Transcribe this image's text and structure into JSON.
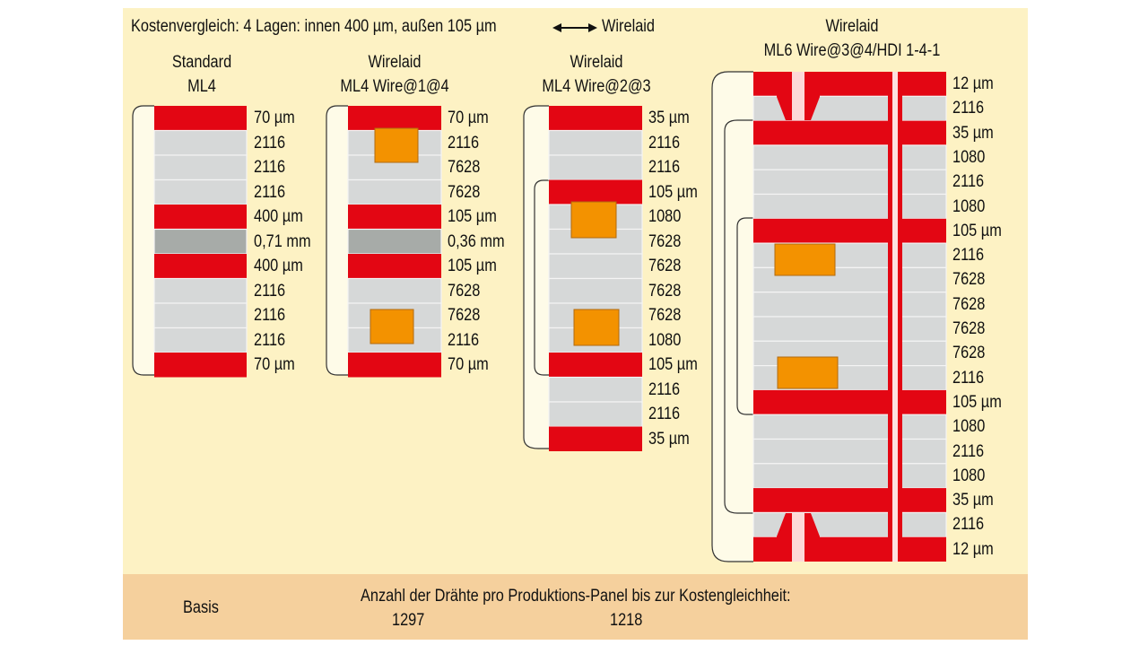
{
  "title": "Kostenvergleich: 4 Lagen: innen 400 µm, außen 105 µm",
  "arrow_target": "Wirelaid",
  "colors": {
    "copper": "#e30613",
    "prepreg": "#d6d8d8",
    "core": "#a7aba8",
    "wire": "#f39200",
    "background": "#fdf2c4",
    "footer": "#f5d09d"
  },
  "stacks": [
    {
      "title": [
        "Standard",
        "ML4"
      ],
      "layers": [
        {
          "label": "70 µm",
          "type": "copper"
        },
        {
          "label": "2116",
          "type": "prepreg"
        },
        {
          "label": "2116",
          "type": "prepreg"
        },
        {
          "label": "2116",
          "type": "prepreg"
        },
        {
          "label": "400 µm",
          "type": "copper"
        },
        {
          "label": "0,71 mm",
          "type": "core"
        },
        {
          "label": "400 µm",
          "type": "copper"
        },
        {
          "label": "2116",
          "type": "prepreg"
        },
        {
          "label": "2116",
          "type": "prepreg"
        },
        {
          "label": "2116",
          "type": "prepreg"
        },
        {
          "label": "70 µm",
          "type": "copper"
        }
      ]
    },
    {
      "title": [
        "Wirelaid",
        "ML4 Wire@1@4"
      ],
      "layers": [
        {
          "label": "70 µm",
          "type": "copper"
        },
        {
          "label": "2116",
          "type": "prepreg"
        },
        {
          "label": "7628",
          "type": "prepreg"
        },
        {
          "label": "7628",
          "type": "prepreg"
        },
        {
          "label": "105 µm",
          "type": "copper"
        },
        {
          "label": "0,36 mm",
          "type": "core"
        },
        {
          "label": "105 µm",
          "type": "copper"
        },
        {
          "label": "7628",
          "type": "prepreg"
        },
        {
          "label": "7628",
          "type": "prepreg"
        },
        {
          "label": "2116",
          "type": "prepreg"
        },
        {
          "label": "70 µm",
          "type": "copper"
        }
      ]
    },
    {
      "title": [
        "Wirelaid",
        "ML4 Wire@2@3"
      ],
      "layers": [
        {
          "label": "35 µm",
          "type": "copper"
        },
        {
          "label": "2116",
          "type": "prepreg"
        },
        {
          "label": "2116",
          "type": "prepreg"
        },
        {
          "label": "105 µm",
          "type": "copper"
        },
        {
          "label": "1080",
          "type": "prepreg"
        },
        {
          "label": "7628",
          "type": "prepreg"
        },
        {
          "label": "7628",
          "type": "prepreg"
        },
        {
          "label": "7628",
          "type": "prepreg"
        },
        {
          "label": "7628",
          "type": "prepreg"
        },
        {
          "label": "1080",
          "type": "prepreg"
        },
        {
          "label": "105 µm",
          "type": "copper"
        },
        {
          "label": "2116",
          "type": "prepreg"
        },
        {
          "label": "2116",
          "type": "prepreg"
        },
        {
          "label": "35 µm",
          "type": "copper"
        }
      ]
    },
    {
      "title": [
        "Wirelaid",
        "ML6 Wire@3@4/HDI 1-4-1"
      ],
      "layers": [
        {
          "label": "12 µm",
          "type": "copper"
        },
        {
          "label": "2116",
          "type": "prepreg"
        },
        {
          "label": "35 µm",
          "type": "copper"
        },
        {
          "label": "1080",
          "type": "prepreg"
        },
        {
          "label": "2116",
          "type": "prepreg"
        },
        {
          "label": "1080",
          "type": "prepreg"
        },
        {
          "label": "105 µm",
          "type": "copper"
        },
        {
          "label": "2116",
          "type": "prepreg"
        },
        {
          "label": "7628",
          "type": "prepreg"
        },
        {
          "label": "7628",
          "type": "prepreg"
        },
        {
          "label": "7628",
          "type": "prepreg"
        },
        {
          "label": "7628",
          "type": "prepreg"
        },
        {
          "label": "2116",
          "type": "prepreg"
        },
        {
          "label": "105 µm",
          "type": "copper"
        },
        {
          "label": "1080",
          "type": "prepreg"
        },
        {
          "label": "2116",
          "type": "prepreg"
        },
        {
          "label": "1080",
          "type": "prepreg"
        },
        {
          "label": "35 µm",
          "type": "copper"
        },
        {
          "label": "2116",
          "type": "prepreg"
        },
        {
          "label": "12 µm",
          "type": "copper"
        }
      ]
    }
  ],
  "footer": {
    "left_label": "Basis",
    "heading": "Anzahl der Drähte pro Produktions-Panel bis zur Kostengleichheit:",
    "value_1": "1297",
    "value_2": "1218"
  }
}
